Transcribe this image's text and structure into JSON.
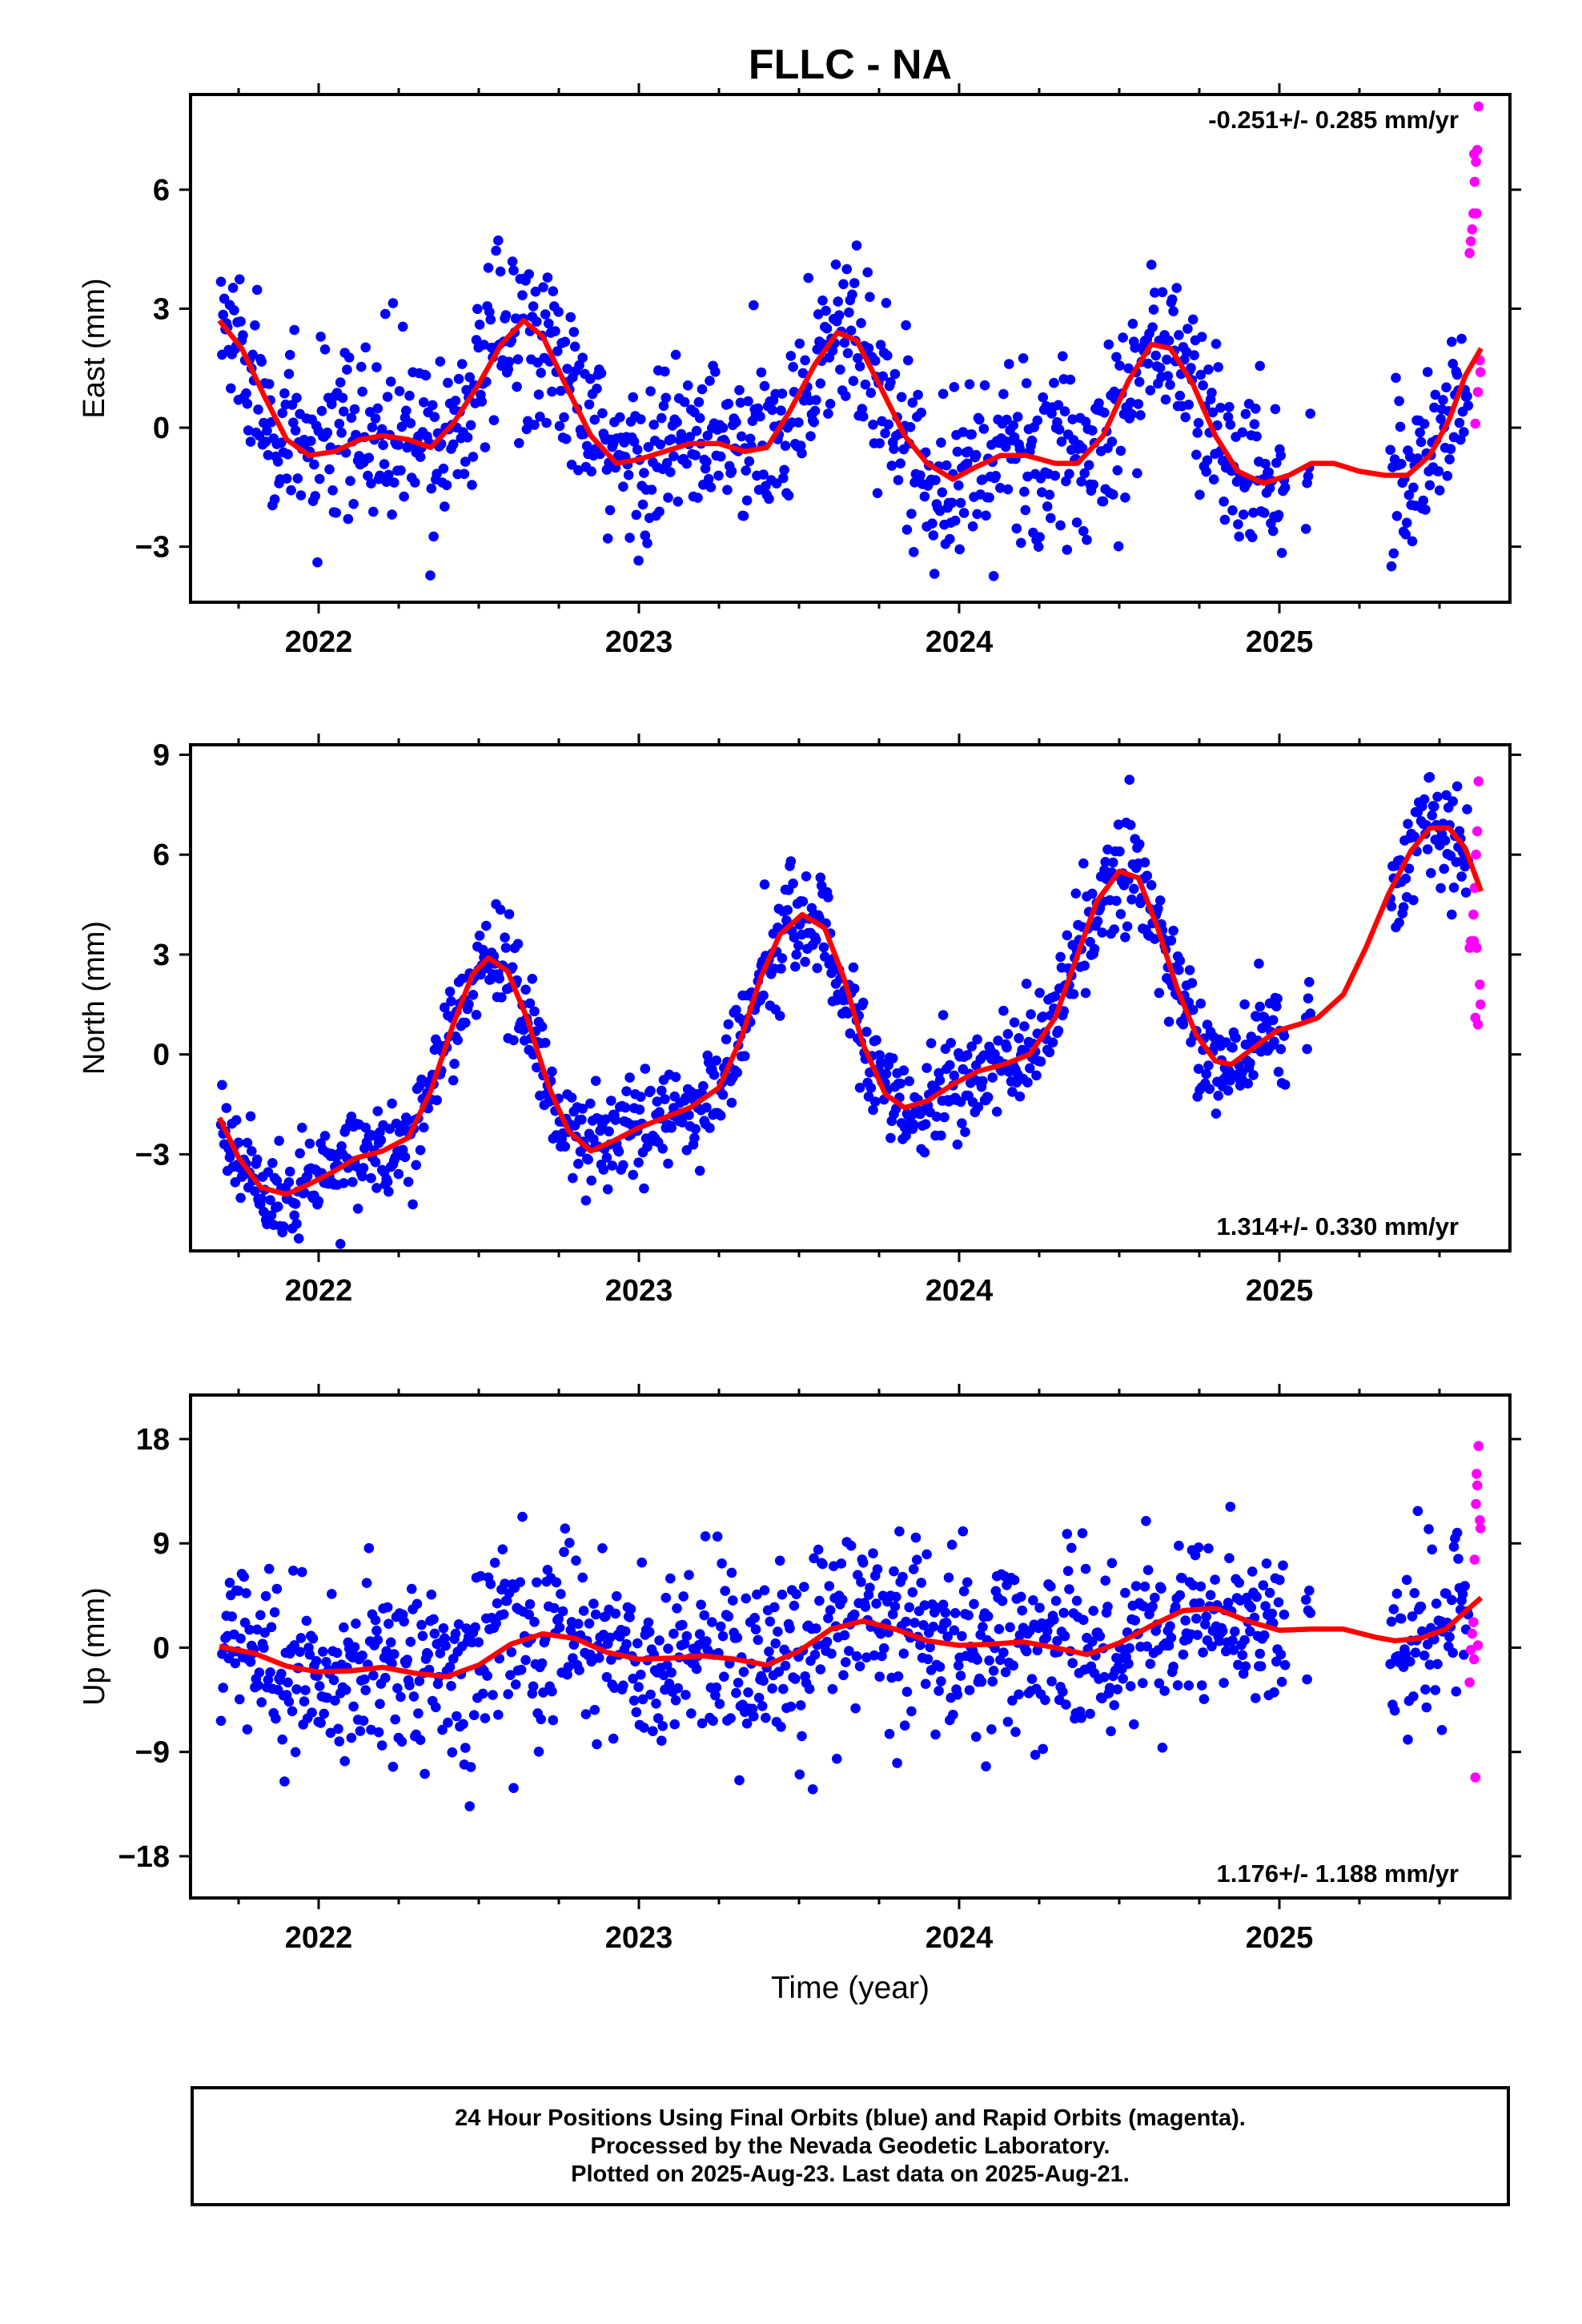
{
  "chart_data": {
    "title": "FLLC - NA",
    "xlabel": "Time (year)",
    "x_ticks": [
      "2022",
      "2023",
      "2024",
      "2025"
    ],
    "xlim": [
      2021.6,
      2025.72
    ],
    "colors": {
      "final": "#0000ff",
      "rapid": "#ff00ff",
      "fit": "#ff0000"
    },
    "grid": false,
    "panels": [
      {
        "type": "scatter",
        "name": "east",
        "ylabel": "East (mm)",
        "ylim": [
          -4.4,
          8.4
        ],
        "y_ticks": [
          6,
          3,
          0,
          -3
        ],
        "y_tick_labels": [
          "6",
          "3",
          "0",
          "−3"
        ],
        "rate": "-0.251+/- 0.285 mm/yr",
        "rate_position": "top-right",
        "trend_rate": -0.251,
        "sigma": 1.1,
        "fit_curve": [
          [
            2021.69,
            2.7
          ],
          [
            2021.76,
            2.0
          ],
          [
            2021.83,
            0.8
          ],
          [
            2021.9,
            -0.3
          ],
          [
            2021.97,
            -0.7
          ],
          [
            2022.05,
            -0.6
          ],
          [
            2022.13,
            -0.3
          ],
          [
            2022.2,
            -0.2
          ],
          [
            2022.28,
            -0.3
          ],
          [
            2022.35,
            -0.5
          ],
          [
            2022.42,
            0.1
          ],
          [
            2022.5,
            1.1
          ],
          [
            2022.57,
            2.1
          ],
          [
            2022.64,
            2.7
          ],
          [
            2022.7,
            2.3
          ],
          [
            2022.77,
            1.1
          ],
          [
            2022.85,
            -0.2
          ],
          [
            2022.93,
            -0.9
          ],
          [
            2023.0,
            -0.8
          ],
          [
            2023.08,
            -0.6
          ],
          [
            2023.16,
            -0.4
          ],
          [
            2023.25,
            -0.4
          ],
          [
            2023.33,
            -0.6
          ],
          [
            2023.4,
            -0.5
          ],
          [
            2023.47,
            0.4
          ],
          [
            2023.55,
            1.6
          ],
          [
            2023.62,
            2.4
          ],
          [
            2023.68,
            2.2
          ],
          [
            2023.75,
            1.1
          ],
          [
            2023.83,
            -0.2
          ],
          [
            2023.9,
            -0.9
          ],
          [
            2023.98,
            -1.3
          ],
          [
            2024.05,
            -1.0
          ],
          [
            2024.13,
            -0.7
          ],
          [
            2024.21,
            -0.7
          ],
          [
            2024.3,
            -0.9
          ],
          [
            2024.37,
            -0.9
          ],
          [
            2024.45,
            -0.2
          ],
          [
            2024.53,
            1.2
          ],
          [
            2024.6,
            2.1
          ],
          [
            2024.66,
            2.0
          ],
          [
            2024.73,
            1.1
          ],
          [
            2024.8,
            -0.2
          ],
          [
            2024.87,
            -1.1
          ],
          [
            2024.95,
            -1.4
          ],
          [
            2025.03,
            -1.2
          ],
          [
            2025.1,
            -0.9
          ],
          [
            2025.17,
            -0.9
          ],
          [
            2025.25,
            -1.1
          ],
          [
            2025.33,
            -1.2
          ],
          [
            2025.4,
            -1.2
          ],
          [
            2025.47,
            -0.7
          ],
          [
            2025.53,
            0.2
          ],
          [
            2025.58,
            1.3
          ],
          [
            2025.63,
            2.0
          ]
        ],
        "rapid_points": [
          [
            2025.594,
            4.4
          ],
          [
            2025.598,
            4.7
          ],
          [
            2025.602,
            5.0
          ],
          [
            2025.606,
            5.4
          ],
          [
            2025.61,
            6.2
          ],
          [
            2025.614,
            6.7
          ],
          [
            2025.618,
            7.0
          ],
          [
            2025.622,
            8.1
          ],
          [
            2025.626,
            1.7
          ],
          [
            2025.628,
            1.4
          ],
          [
            2025.62,
            0.9
          ],
          [
            2025.612,
            0.1
          ],
          [
            2025.616,
            5.4
          ],
          [
            2025.608,
            6.9
          ]
        ]
      },
      {
        "type": "scatter",
        "name": "north",
        "ylabel": "North (mm)",
        "ylim": [
          -5.9,
          9.3
        ],
        "y_ticks": [
          9,
          6,
          3,
          0,
          -3
        ],
        "y_tick_labels": [
          "9",
          "6",
          "3",
          "0",
          "−3"
        ],
        "rate": "1.314+/- 0.330 mm/yr",
        "rate_position": "bottom-right",
        "trend_rate": 1.314,
        "sigma": 0.75,
        "fit_curve": [
          [
            2021.69,
            -1.9
          ],
          [
            2021.75,
            -3.1
          ],
          [
            2021.82,
            -4.0
          ],
          [
            2021.9,
            -4.2
          ],
          [
            2021.97,
            -3.9
          ],
          [
            2022.05,
            -3.5
          ],
          [
            2022.12,
            -3.1
          ],
          [
            2022.2,
            -2.9
          ],
          [
            2022.28,
            -2.5
          ],
          [
            2022.35,
            -1.1
          ],
          [
            2022.42,
            0.9
          ],
          [
            2022.48,
            2.4
          ],
          [
            2022.53,
            2.9
          ],
          [
            2022.59,
            2.5
          ],
          [
            2022.65,
            1.1
          ],
          [
            2022.72,
            -1.0
          ],
          [
            2022.78,
            -2.3
          ],
          [
            2022.85,
            -2.9
          ],
          [
            2022.92,
            -2.6
          ],
          [
            2023.0,
            -2.2
          ],
          [
            2023.08,
            -1.9
          ],
          [
            2023.16,
            -1.6
          ],
          [
            2023.25,
            -1.0
          ],
          [
            2023.32,
            0.5
          ],
          [
            2023.38,
            2.3
          ],
          [
            2023.44,
            3.6
          ],
          [
            2023.51,
            4.2
          ],
          [
            2023.58,
            3.8
          ],
          [
            2023.64,
            2.3
          ],
          [
            2023.7,
            0.3
          ],
          [
            2023.77,
            -1.2
          ],
          [
            2023.83,
            -1.6
          ],
          [
            2023.9,
            -1.4
          ],
          [
            2023.98,
            -0.9
          ],
          [
            2024.06,
            -0.5
          ],
          [
            2024.14,
            -0.3
          ],
          [
            2024.22,
            0.0
          ],
          [
            2024.3,
            1.1
          ],
          [
            2024.37,
            3.0
          ],
          [
            2024.43,
            4.6
          ],
          [
            2024.5,
            5.5
          ],
          [
            2024.56,
            5.3
          ],
          [
            2024.62,
            3.8
          ],
          [
            2024.68,
            2.0
          ],
          [
            2024.74,
            0.6
          ],
          [
            2024.8,
            -0.2
          ],
          [
            2024.85,
            -0.3
          ],
          [
            2024.92,
            0.2
          ],
          [
            2024.99,
            0.7
          ],
          [
            2025.06,
            0.9
          ],
          [
            2025.12,
            1.1
          ],
          [
            2025.2,
            1.8
          ],
          [
            2025.27,
            3.2
          ],
          [
            2025.34,
            4.8
          ],
          [
            2025.41,
            6.1
          ],
          [
            2025.47,
            6.8
          ],
          [
            2025.53,
            6.8
          ],
          [
            2025.58,
            6.2
          ],
          [
            2025.63,
            4.9
          ]
        ],
        "rapid_points": [
          [
            2025.594,
            3.2
          ],
          [
            2025.598,
            3.4
          ],
          [
            2025.602,
            3.3
          ],
          [
            2025.606,
            4.2
          ],
          [
            2025.61,
            5.0
          ],
          [
            2025.614,
            6.0
          ],
          [
            2025.618,
            6.7
          ],
          [
            2025.622,
            8.2
          ],
          [
            2025.626,
            2.1
          ],
          [
            2025.628,
            1.5
          ],
          [
            2025.62,
            0.9
          ],
          [
            2025.612,
            1.1
          ],
          [
            2025.616,
            3.2
          ],
          [
            2025.608,
            3.4
          ]
        ]
      },
      {
        "type": "scatter",
        "name": "up",
        "ylabel": "Up (mm)",
        "ylim": [
          -21.6,
          21.8
        ],
        "y_ticks": [
          18,
          9,
          0,
          -9,
          -18
        ],
        "y_tick_labels": [
          "18",
          "9",
          "0",
          "−9",
          "−18"
        ],
        "rate": "1.176+/- 1.188 mm/yr",
        "rate_position": "bottom-right",
        "trend_rate": 1.176,
        "sigma": 3.8,
        "fit_curve": [
          [
            2021.69,
            0.1
          ],
          [
            2021.8,
            -0.5
          ],
          [
            2021.9,
            -1.6
          ],
          [
            2022.0,
            -2.1
          ],
          [
            2022.1,
            -2.0
          ],
          [
            2022.2,
            -1.7
          ],
          [
            2022.3,
            -2.2
          ],
          [
            2022.4,
            -2.5
          ],
          [
            2022.5,
            -1.5
          ],
          [
            2022.6,
            0.3
          ],
          [
            2022.7,
            1.2
          ],
          [
            2022.8,
            0.8
          ],
          [
            2022.9,
            -0.4
          ],
          [
            2023.0,
            -1.0
          ],
          [
            2023.1,
            -0.9
          ],
          [
            2023.2,
            -0.7
          ],
          [
            2023.3,
            -1.0
          ],
          [
            2023.4,
            -1.5
          ],
          [
            2023.5,
            -0.3
          ],
          [
            2023.6,
            1.6
          ],
          [
            2023.7,
            2.3
          ],
          [
            2023.8,
            1.6
          ],
          [
            2023.9,
            0.6
          ],
          [
            2024.0,
            0.2
          ],
          [
            2024.1,
            0.3
          ],
          [
            2024.2,
            0.5
          ],
          [
            2024.3,
            0.0
          ],
          [
            2024.4,
            -0.6
          ],
          [
            2024.5,
            0.4
          ],
          [
            2024.6,
            1.9
          ],
          [
            2024.7,
            3.2
          ],
          [
            2024.8,
            3.4
          ],
          [
            2024.9,
            2.3
          ],
          [
            2025.0,
            1.5
          ],
          [
            2025.1,
            1.6
          ],
          [
            2025.2,
            1.6
          ],
          [
            2025.3,
            0.9
          ],
          [
            2025.36,
            0.6
          ],
          [
            2025.44,
            0.8
          ],
          [
            2025.52,
            1.6
          ],
          [
            2025.58,
            3.1
          ],
          [
            2025.63,
            4.3
          ]
        ],
        "rapid_points": [
          [
            2025.594,
            -3.0
          ],
          [
            2025.598,
            -0.2
          ],
          [
            2025.602,
            1.2
          ],
          [
            2025.606,
            2.2
          ],
          [
            2025.61,
            7.6
          ],
          [
            2025.614,
            12.4
          ],
          [
            2025.618,
            14.0
          ],
          [
            2025.622,
            17.4
          ],
          [
            2025.626,
            11.0
          ],
          [
            2025.628,
            10.3
          ],
          [
            2025.62,
            0.2
          ],
          [
            2025.612,
            -11.2
          ],
          [
            2025.616,
            15.0
          ],
          [
            2025.608,
            -1.0
          ]
        ]
      }
    ]
  },
  "footer": {
    "line1": "24 Hour Positions Using Final Orbits (blue) and Rapid Orbits (magenta).",
    "line2": "Processed by the Nevada Geodetic Laboratory.",
    "line3": "Plotted on 2025-Aug-23. Last data on 2025-Aug-21."
  }
}
